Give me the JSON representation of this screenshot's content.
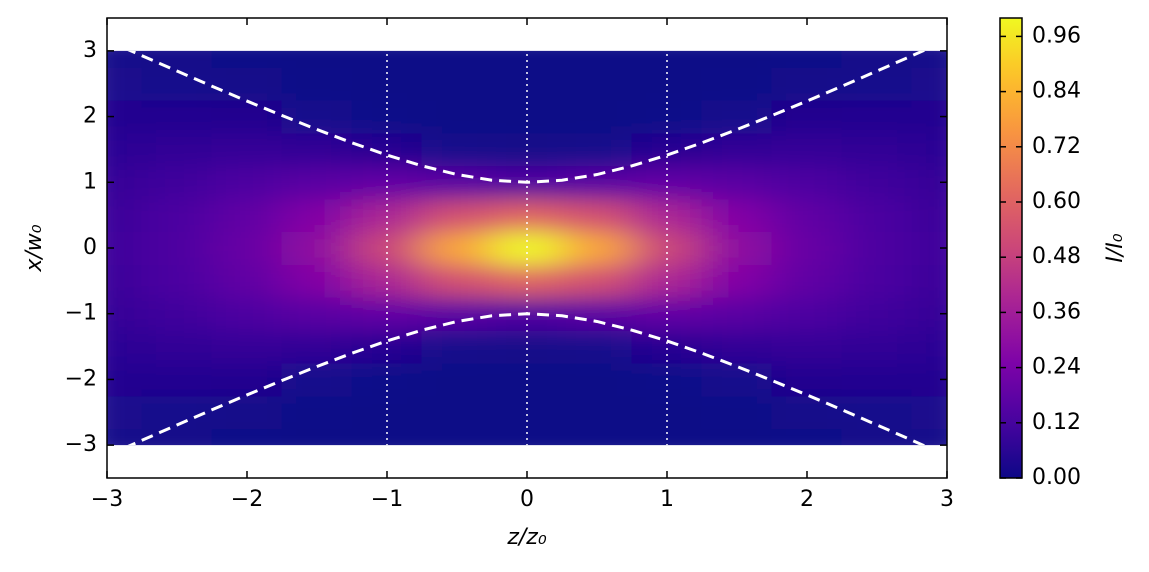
{
  "chart_data": {
    "type": "heatmap",
    "colormap": "plasma",
    "x_label": "z/z₀",
    "y_label": "x/w₀",
    "colorbar_label": "I/I₀",
    "xlim": [
      -3,
      3
    ],
    "ylim": [
      -3.5,
      3.5
    ],
    "clim": [
      0,
      1
    ],
    "xticks": [
      {
        "value": -3,
        "label": "−3"
      },
      {
        "value": -2,
        "label": "−2"
      },
      {
        "value": -1,
        "label": "−1"
      },
      0,
      1,
      2,
      3
    ],
    "yticks": [
      {
        "value": -3,
        "label": "−3"
      },
      {
        "value": -2,
        "label": "−2"
      },
      {
        "value": -1,
        "label": "−1"
      },
      0,
      1,
      2,
      3
    ],
    "cticks": [
      {
        "value": 0,
        "label": "0.00"
      },
      {
        "value": 0.12,
        "label": "0.12"
      },
      {
        "value": 0.24,
        "label": "0.24"
      },
      {
        "value": 0.36,
        "label": "0.36"
      },
      {
        "value": 0.48,
        "label": "0.48"
      },
      {
        "value": 0.6,
        "label": "0.60"
      },
      {
        "value": 0.72,
        "label": "0.72"
      },
      {
        "value": 0.84,
        "label": "0.84"
      },
      {
        "value": 0.96,
        "label": "0.96"
      }
    ],
    "x": [
      -3,
      -2.5,
      -2,
      -1.5,
      -1,
      -0.5,
      0,
      0.5,
      1,
      1.5,
      2,
      2.5,
      3
    ],
    "y": [
      -3,
      -2.5,
      -2,
      -1.5,
      -1,
      -0.5,
      0,
      0.5,
      1,
      1.5,
      2,
      2.5,
      3
    ],
    "values": [
      [
        0.017,
        0.012,
        0.005,
        0.001,
        0,
        0,
        0,
        0,
        0,
        0.001,
        0.005,
        0.012,
        0.017
      ],
      [
        0.03,
        0.025,
        0.016,
        0.007,
        0.001,
        0,
        0,
        0,
        0.001,
        0.007,
        0.016,
        0.025,
        0.03
      ],
      [
        0.045,
        0.046,
        0.04,
        0.026,
        0.009,
        0.001,
        0,
        0.001,
        0.009,
        0.026,
        0.04,
        0.046,
        0.045
      ],
      [
        0.064,
        0.074,
        0.081,
        0.077,
        0.053,
        0.022,
        0.011,
        0.022,
        0.053,
        0.077,
        0.081,
        0.074,
        0.064
      ],
      [
        0.082,
        0.105,
        0.134,
        0.166,
        0.184,
        0.162,
        0.135,
        0.162,
        0.184,
        0.166,
        0.134,
        0.105,
        0.082
      ],
      [
        0.095,
        0.129,
        0.181,
        0.264,
        0.389,
        0.536,
        0.607,
        0.536,
        0.389,
        0.264,
        0.181,
        0.129,
        0.095
      ],
      [
        0.1,
        0.138,
        0.2,
        0.308,
        0.5,
        0.8,
        1,
        0.8,
        0.5,
        0.308,
        0.2,
        0.138,
        0.1
      ],
      [
        0.095,
        0.129,
        0.181,
        0.264,
        0.389,
        0.536,
        0.607,
        0.536,
        0.389,
        0.264,
        0.181,
        0.129,
        0.095
      ],
      [
        0.082,
        0.105,
        0.134,
        0.166,
        0.184,
        0.162,
        0.135,
        0.162,
        0.184,
        0.166,
        0.134,
        0.105,
        0.082
      ],
      [
        0.064,
        0.074,
        0.081,
        0.077,
        0.053,
        0.022,
        0.011,
        0.022,
        0.053,
        0.077,
        0.081,
        0.074,
        0.064
      ],
      [
        0.045,
        0.046,
        0.04,
        0.026,
        0.009,
        0.001,
        0,
        0.001,
        0.009,
        0.026,
        0.04,
        0.046,
        0.045
      ],
      [
        0.03,
        0.025,
        0.016,
        0.007,
        0.001,
        0,
        0,
        0,
        0.001,
        0.007,
        0.016,
        0.025,
        0.03
      ],
      [
        0.017,
        0.012,
        0.005,
        0.001,
        0,
        0,
        0,
        0,
        0,
        0.001,
        0.005,
        0.012,
        0.017
      ]
    ],
    "curve_x": [
      -3,
      -2.75,
      -2.5,
      -2.25,
      -2,
      -1.75,
      -1.5,
      -1.25,
      -1,
      -0.75,
      -0.5,
      -0.25,
      0,
      0.25,
      0.5,
      0.75,
      1,
      1.25,
      1.5,
      1.75,
      2,
      2.25,
      2.5,
      2.75,
      3
    ],
    "curves": [
      {
        "color": "#ffffff",
        "values": [
          3.162,
          2.926,
          2.693,
          2.462,
          2.236,
          2.016,
          1.803,
          1.601,
          1.414,
          1.25,
          1.118,
          1.031,
          1,
          1.031,
          1.118,
          1.25,
          1.414,
          1.601,
          1.803,
          2.016,
          2.236,
          2.462,
          2.693,
          2.926,
          3.162
        ]
      },
      {
        "color": "#ffffff",
        "values": [
          -3.162,
          -2.926,
          -2.693,
          -2.462,
          -2.236,
          -2.016,
          -1.803,
          -1.601,
          -1.414,
          -1.25,
          -1.118,
          -1.031,
          -1,
          -1.031,
          -1.118,
          -1.25,
          -1.414,
          -1.601,
          -1.803,
          -2.016,
          -2.236,
          -2.462,
          -2.693,
          -2.926,
          -3.162
        ]
      }
    ],
    "vlines": [
      -1,
      0,
      1
    ]
  }
}
